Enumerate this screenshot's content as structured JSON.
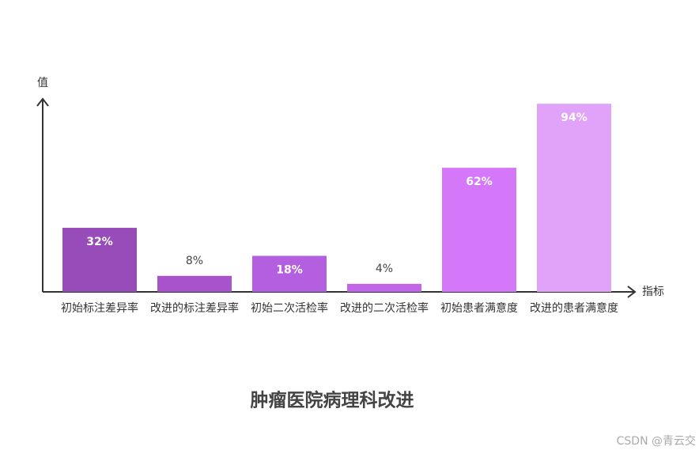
{
  "chart_data": {
    "type": "bar",
    "title": "肿瘤医院病理科改进",
    "y_label": "值",
    "x_label": "指标",
    "categories": [
      "初始标注差异率",
      "改进的标注差异率",
      "初始二次活检率",
      "改进的二次活检率",
      "初始患者满意度",
      "改进的患者满意度"
    ],
    "values": [
      32,
      8,
      18,
      4,
      62,
      94
    ],
    "value_labels": [
      "32%",
      "8%",
      "18%",
      "4%",
      "62%",
      "94%"
    ],
    "colors": [
      "#974cba",
      "#a852cc",
      "#b45fe0",
      "#c165e9",
      "#d478f9",
      "#e1a2f9"
    ],
    "ylim": [
      0,
      100
    ],
    "watermark": "CSDN @青云交"
  }
}
